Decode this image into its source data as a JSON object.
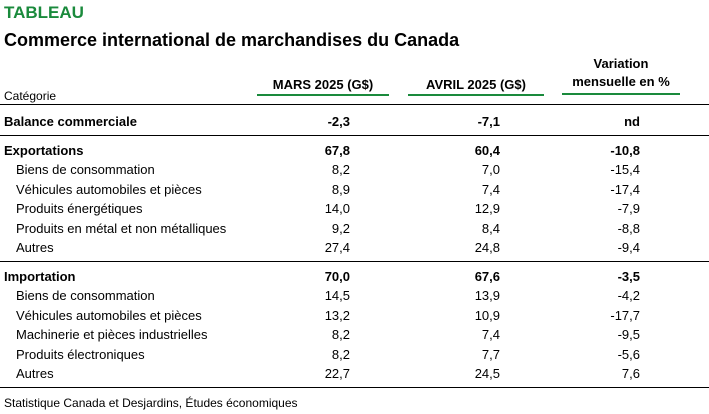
{
  "header": {
    "label": "TABLEAU",
    "title": "Commerce international de marchandises du Canada"
  },
  "columns": {
    "category": "Catégorie",
    "col1": "MARS 2025 (G$)",
    "col2": "AVRIL 2025 (G$)",
    "col3_line1": "Variation",
    "col3_line2": "mensuelle en %"
  },
  "rows": [
    {
      "label": "Balance commerciale",
      "mars": "-2,3",
      "avril": "-7,1",
      "var": "nd",
      "bold": true
    },
    {
      "label": "Exportations",
      "mars": "67,8",
      "avril": "60,4",
      "var": "-10,8",
      "bold": true
    },
    {
      "label": "Biens de consommation",
      "mars": "8,2",
      "avril": "7,0",
      "var": "-15,4"
    },
    {
      "label": "Véhicules automobiles et pièces",
      "mars": "8,9",
      "avril": "7,4",
      "var": "-17,4"
    },
    {
      "label": "Produits énergétiques",
      "mars": "14,0",
      "avril": "12,9",
      "var": "-7,9"
    },
    {
      "label": "Produits en métal et non métalliques",
      "mars": "9,2",
      "avril": "8,4",
      "var": "-8,8"
    },
    {
      "label": "Autres",
      "mars": "27,4",
      "avril": "24,8",
      "var": "-9,4"
    },
    {
      "label": "Importation",
      "mars": "70,0",
      "avril": "67,6",
      "var": "-3,5",
      "bold": true
    },
    {
      "label": "Biens de consommation",
      "mars": "14,5",
      "avril": "13,9",
      "var": "-4,2"
    },
    {
      "label": "Véhicules automobiles et pièces",
      "mars": "13,2",
      "avril": "10,9",
      "var": "-17,7"
    },
    {
      "label": "Machinerie et pièces industrielles",
      "mars": "8,2",
      "avril": "7,4",
      "var": "-9,5"
    },
    {
      "label": "Produits électroniques",
      "mars": "8,2",
      "avril": "7,7",
      "var": "-5,6"
    },
    {
      "label": "Autres",
      "mars": "22,7",
      "avril": "24,5",
      "var": "7,6"
    }
  ],
  "source": "Statistique Canada et Desjardins, Études économiques",
  "colors": {
    "accent": "#1a8a3c"
  }
}
